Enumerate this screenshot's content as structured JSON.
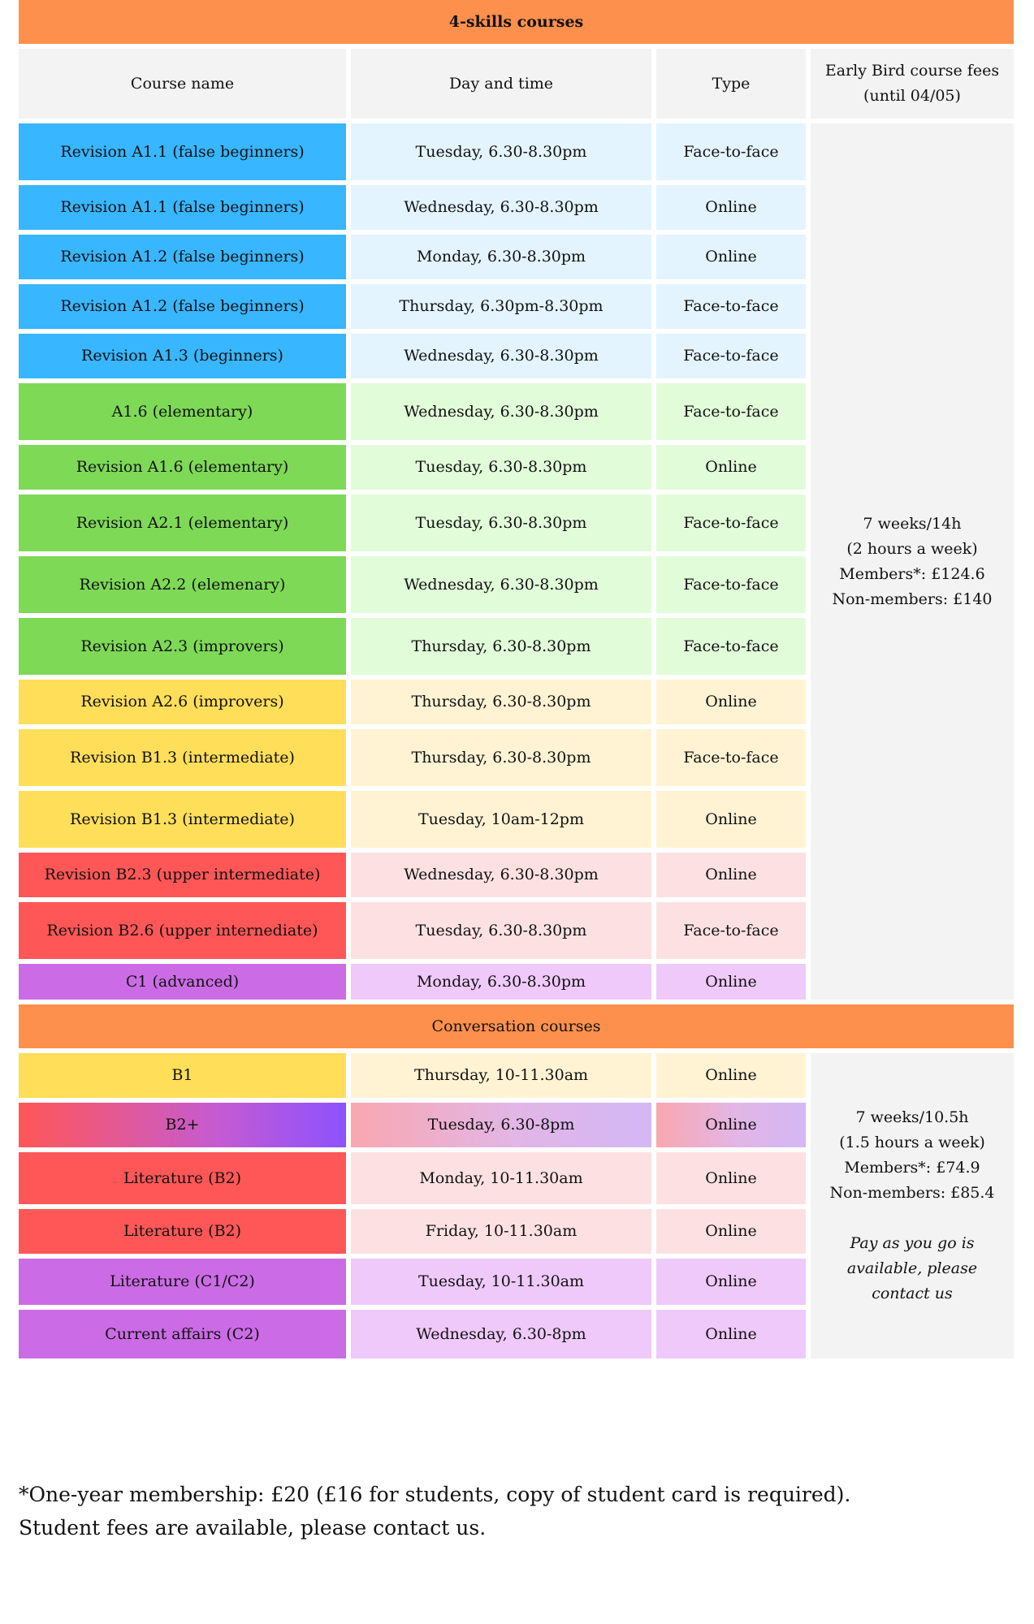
{
  "four_skills": {
    "title": "4-skills courses",
    "headers": {
      "course": "Course name",
      "day_time": "Day and time",
      "type": "Type",
      "fees_line1": "Early Bird course fees",
      "fees_line2": "(until 04/05)"
    },
    "rows": [
      {
        "name": "Revision A1.1 (false beginners)",
        "time": "Tuesday, 6.30-8.30pm",
        "type": "Face-to-face",
        "color": "blue"
      },
      {
        "name": "Revision A1.1 (false beginners)",
        "time": "Wednesday, 6.30-8.30pm",
        "type": "Online",
        "color": "blue"
      },
      {
        "name": "Revision A1.2 (false beginners)",
        "time": "Monday, 6.30-8.30pm",
        "type": "Online",
        "color": "blue"
      },
      {
        "name": "Revision A1.2 (false beginners)",
        "time": "Thursday, 6.30pm-8.30pm",
        "type": "Face-to-face",
        "color": "blue"
      },
      {
        "name": "Revision A1.3 (beginners)",
        "time": "Wednesday, 6.30-8.30pm",
        "type": "Face-to-face",
        "color": "blue"
      },
      {
        "name": "A1.6 (elementary)",
        "time": "Wednesday, 6.30-8.30pm",
        "type": "Face-to-face",
        "color": "green"
      },
      {
        "name": "Revision A1.6 (elementary)",
        "time": "Tuesday, 6.30-8.30pm",
        "type": "Online",
        "color": "green"
      },
      {
        "name": "Revision A2.1 (elementary)",
        "time": "Tuesday, 6.30-8.30pm",
        "type": "Face-to-face",
        "color": "green"
      },
      {
        "name": "Revision A2.2 (elemenary)",
        "time": "Wednesday, 6.30-8.30pm",
        "type": "Face-to-face",
        "color": "green"
      },
      {
        "name": "Revision A2.3 (improvers)",
        "time": "Thursday, 6.30-8.30pm",
        "type": "Face-to-face",
        "color": "green"
      },
      {
        "name": "Revision A2.6 (improvers)",
        "time": "Thursday, 6.30-8.30pm",
        "type": "Online",
        "color": "yellow"
      },
      {
        "name": "Revision B1.3 (intermediate)",
        "time": "Thursday, 6.30-8.30pm",
        "type": "Face-to-face",
        "color": "yellow"
      },
      {
        "name": "Revision B1.3 (intermediate)",
        "time": "Tuesday, 10am-12pm",
        "type": "Online",
        "color": "yellow"
      },
      {
        "name": "Revision B2.3 (upper intermediate)",
        "time": "Wednesday, 6.30-8.30pm",
        "type": "Online",
        "color": "red"
      },
      {
        "name": "Revision B2.6 (upper internediate)",
        "time": "Tuesday, 6.30-8.30pm",
        "type": "Face-to-face",
        "color": "red"
      },
      {
        "name": "C1 (advanced)",
        "time": "Monday, 6.30-8.30pm",
        "type": "Online",
        "color": "purple"
      }
    ],
    "fees": {
      "line1": "7 weeks/14h",
      "line2": "(2 hours a week)",
      "line3": "Members*: £124.6",
      "line4": "Non-members: £140"
    }
  },
  "conversation": {
    "title": "Conversation courses",
    "rows": [
      {
        "name": "B1",
        "time": "Thursday, 10-11.30am",
        "type": "Online",
        "color": "yellow"
      },
      {
        "name": "B2+",
        "time": "Tuesday, 6.30-8pm",
        "type": "Online",
        "color": "gradient"
      },
      {
        "name": "Literature (B2)",
        "time": "Monday, 10-11.30am",
        "type": "Online",
        "color": "red"
      },
      {
        "name": "Literature (B2)",
        "time": "Friday, 10-11.30am",
        "type": "Online",
        "color": "red"
      },
      {
        "name": "Literature (C1/C2)",
        "time": "Tuesday, 10-11.30am",
        "type": "Online",
        "color": "purple"
      },
      {
        "name": "Current affairs (C2)",
        "time": "Wednesday, 6.30-8pm",
        "type": "Online",
        "color": "purple"
      }
    ],
    "fees": {
      "line1": "7 weeks/10.5h",
      "line2": "(1.5 hours a week)",
      "line3": "Members*: £74.9",
      "line4": "Non-members: £85.4",
      "note1": "Pay as you go is",
      "note2": "available, please",
      "note3": "contact us"
    }
  },
  "footnote": {
    "line1": "*One-year membership: £20 (£16 for students, copy of student card is required).",
    "line2": "Student fees are available, please contact us."
  },
  "colors": {
    "banner": "#fd904c",
    "header_bg": "#f3f3f3",
    "blue": "#38b6ff",
    "green": "#7ed957",
    "yellow": "#ffde59",
    "red": "#ff5757",
    "purple": "#cb6ce6",
    "gradient_end": "#8c52ff"
  }
}
